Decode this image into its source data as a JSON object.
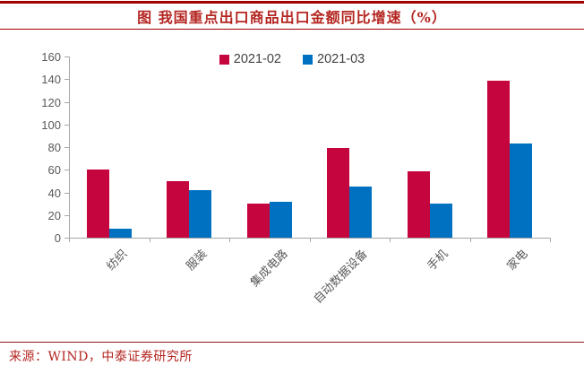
{
  "page": {
    "title": "图 我国重点出口商品出口金额同比增速（%）",
    "source": "来源：WIND，中泰证券研究所"
  },
  "colors": {
    "series_feb": "#c5053e",
    "series_mar": "#0071c1",
    "title_red": "#b42520",
    "rule_red": "#a00000",
    "axis_line": "#a6a6a6",
    "axis_text": "#595959",
    "legend_text": "#404040"
  },
  "chart_data": {
    "type": "bar",
    "title": "图 我国重点出口商品出口金额同比增速（%）",
    "categories": [
      "纺织",
      "服装",
      "集成电路",
      "自动数据设备",
      "手机",
      "家电"
    ],
    "series": [
      {
        "name": "2021-02",
        "color": "#c5053e",
        "values": [
          60,
          50,
          30,
          79,
          59,
          139
        ]
      },
      {
        "name": "2021-03",
        "color": "#0071c1",
        "values": [
          8,
          42,
          32,
          45,
          30,
          83
        ]
      }
    ],
    "xlabel": "",
    "ylabel": "",
    "ylim": [
      0,
      160
    ],
    "ytick_interval": 20,
    "yticks": [
      0,
      20,
      40,
      60,
      80,
      100,
      120,
      140,
      160
    ],
    "grid": false,
    "legend_position": "top-center"
  }
}
